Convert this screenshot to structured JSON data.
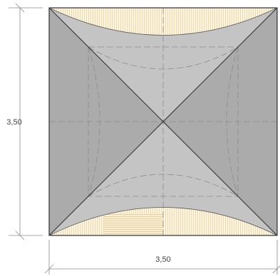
{
  "dimensions": {
    "height_label": "3,50",
    "width_label": "3,50"
  },
  "colors": {
    "roof_face_light": "#c3c3c3",
    "roof_face_dark": "#aaaaaa",
    "timber_hatch_bg": "#fbf5e1",
    "timber_hatch_line": "#e7cf9b",
    "outline": "#333333",
    "dim_line": "#888888"
  }
}
